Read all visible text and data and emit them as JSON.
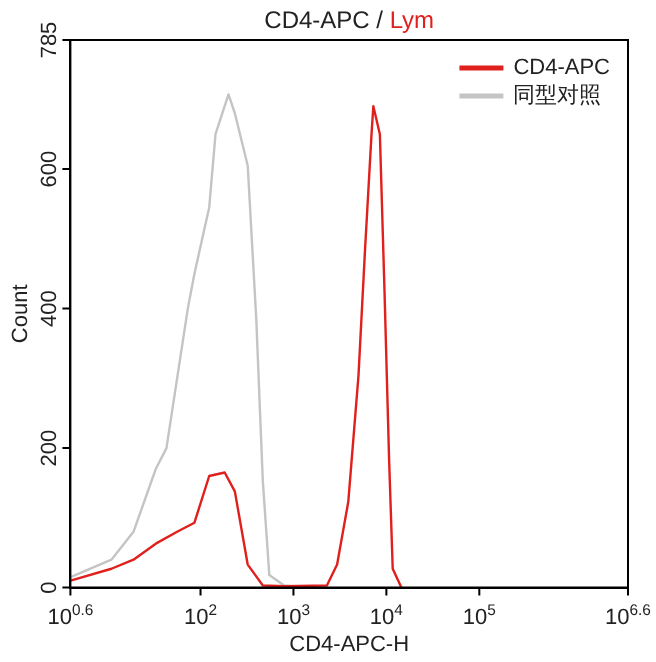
{
  "chart_data": {
    "type": "line",
    "title": "CD4-APC / Lym",
    "xlabel": "CD4-APC-H",
    "ylabel": "Count",
    "log": "x",
    "xlim": [
      3.98,
      3980000
    ],
    "xticks": [
      {
        "value": 3.98,
        "label": "10$^{0.6}$"
      },
      {
        "value": 100,
        "label": "10$^{2}$"
      },
      {
        "value": 1000,
        "label": "10$^{3}$"
      },
      {
        "value": 10000,
        "label": "10$^{4}$"
      },
      {
        "value": 100000,
        "label": "10$^{5}$"
      },
      {
        "value": 3980000,
        "label": "10$^{6.6}$"
      }
    ],
    "ylim": [
      0,
      785
    ],
    "yticks": [
      0,
      200,
      400,
      600,
      785
    ],
    "grid": false,
    "legend": "top right",
    "marker": "none",
    "line_style": "solid",
    "series": [
      {
        "name": "CD4-APC",
        "color": "#e0201c",
        "x": [
          4,
          11,
          19,
          33,
          56,
          86,
          124,
          182,
          234,
          322,
          468,
          794,
          2290,
          2950,
          3890,
          5010,
          5890,
          6920,
          7240,
          8510,
          9550,
          10700,
          11700,
          14500
        ],
        "values": [
          10,
          27,
          40,
          63,
          80,
          93,
          160,
          165,
          138,
          33,
          3,
          2,
          3,
          33,
          123,
          304,
          484,
          650,
          690,
          650,
          424,
          183,
          27,
          0
        ]
      },
      {
        "name": "同型对照",
        "color": "#c4c4c4",
        "x": [
          4,
          11,
          19,
          33,
          43,
          56,
          73,
          86,
          124,
          145,
          200,
          234,
          322,
          398,
          468,
          550,
          794,
          1350
        ],
        "values": [
          15,
          40,
          80,
          170,
          200,
          300,
          400,
          450,
          545,
          650,
          707,
          680,
          605,
          385,
          153,
          18,
          3,
          0
        ]
      }
    ]
  }
}
